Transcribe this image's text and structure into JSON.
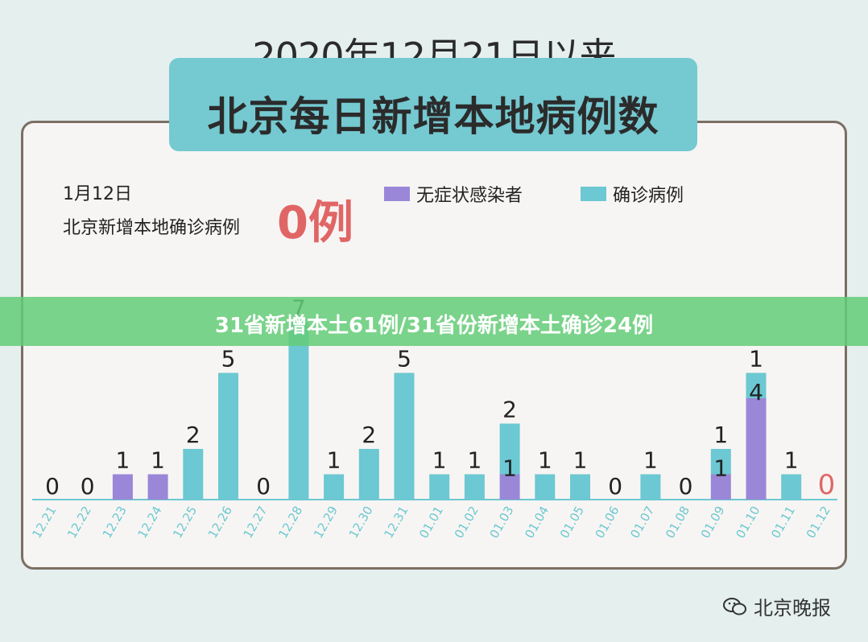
{
  "header": {
    "title_line1": "2020年12月21日以来",
    "title_line2": "北京每日新增本地病例数"
  },
  "note": {
    "date": "1月12日",
    "text": "北京新增本地确诊病例",
    "value": "0例"
  },
  "legend": [
    {
      "label": "无症状感染者",
      "color": "#9b87d8"
    },
    {
      "label": "确诊病例",
      "color": "#6cc8d2"
    }
  ],
  "banner": {
    "text": "31省新增本土61例/31省份新增本土确诊24例"
  },
  "watermark": {
    "text": "北京晚报",
    "icon": "wechat-icon"
  },
  "colors": {
    "asymptomatic": "#9b87d8",
    "confirmed": "#6cc8d2",
    "highlight": "#e06666",
    "axis": "#6cc8d2"
  },
  "chart_data": {
    "type": "bar",
    "stacked": true,
    "categories": [
      "12.21",
      "12.22",
      "12.23",
      "12.24",
      "12.25",
      "12.26",
      "12.27",
      "12.28",
      "12.29",
      "12.30",
      "12.31",
      "01.01",
      "01.02",
      "01.03",
      "01.04",
      "01.05",
      "01.06",
      "01.07",
      "01.08",
      "01.09",
      "01.10",
      "01.11",
      "01.12"
    ],
    "series": [
      {
        "name": "无症状感染者",
        "values": [
          0,
          0,
          1,
          1,
          0,
          0,
          0,
          0,
          0,
          0,
          0,
          0,
          0,
          1,
          0,
          0,
          0,
          0,
          0,
          1,
          4,
          0,
          0
        ]
      },
      {
        "name": "确诊病例",
        "values": [
          0,
          0,
          0,
          0,
          2,
          5,
          0,
          7,
          1,
          2,
          5,
          1,
          1,
          2,
          1,
          1,
          0,
          1,
          0,
          1,
          1,
          1,
          0
        ]
      }
    ],
    "labels": [
      {
        "category": "12.21",
        "texts": [
          "0"
        ]
      },
      {
        "category": "12.22",
        "texts": [
          "0"
        ]
      },
      {
        "category": "12.23",
        "texts": [
          "1"
        ]
      },
      {
        "category": "12.24",
        "texts": [
          "1"
        ]
      },
      {
        "category": "12.25",
        "texts": [
          "2"
        ]
      },
      {
        "category": "12.26",
        "texts": [
          "5"
        ]
      },
      {
        "category": "12.27",
        "texts": [
          "0"
        ]
      },
      {
        "category": "12.28",
        "texts": [
          "7"
        ]
      },
      {
        "category": "12.29",
        "texts": [
          "1"
        ]
      },
      {
        "category": "12.30",
        "texts": [
          "2"
        ]
      },
      {
        "category": "12.31",
        "texts": [
          "5"
        ]
      },
      {
        "category": "01.01",
        "texts": [
          "1"
        ]
      },
      {
        "category": "01.02",
        "texts": [
          "1"
        ]
      },
      {
        "category": "01.03",
        "texts": [
          "1",
          "2"
        ]
      },
      {
        "category": "01.04",
        "texts": [
          "1"
        ]
      },
      {
        "category": "01.05",
        "texts": [
          "1"
        ]
      },
      {
        "category": "01.06",
        "texts": [
          "0"
        ]
      },
      {
        "category": "01.07",
        "texts": [
          "1"
        ]
      },
      {
        "category": "01.08",
        "texts": [
          "0"
        ]
      },
      {
        "category": "01.09",
        "texts": [
          "1",
          "1"
        ]
      },
      {
        "category": "01.10",
        "texts": [
          "4",
          "1"
        ]
      },
      {
        "category": "01.11",
        "texts": [
          "1"
        ]
      },
      {
        "category": "01.12",
        "texts": [
          "0"
        ]
      }
    ]
  }
}
